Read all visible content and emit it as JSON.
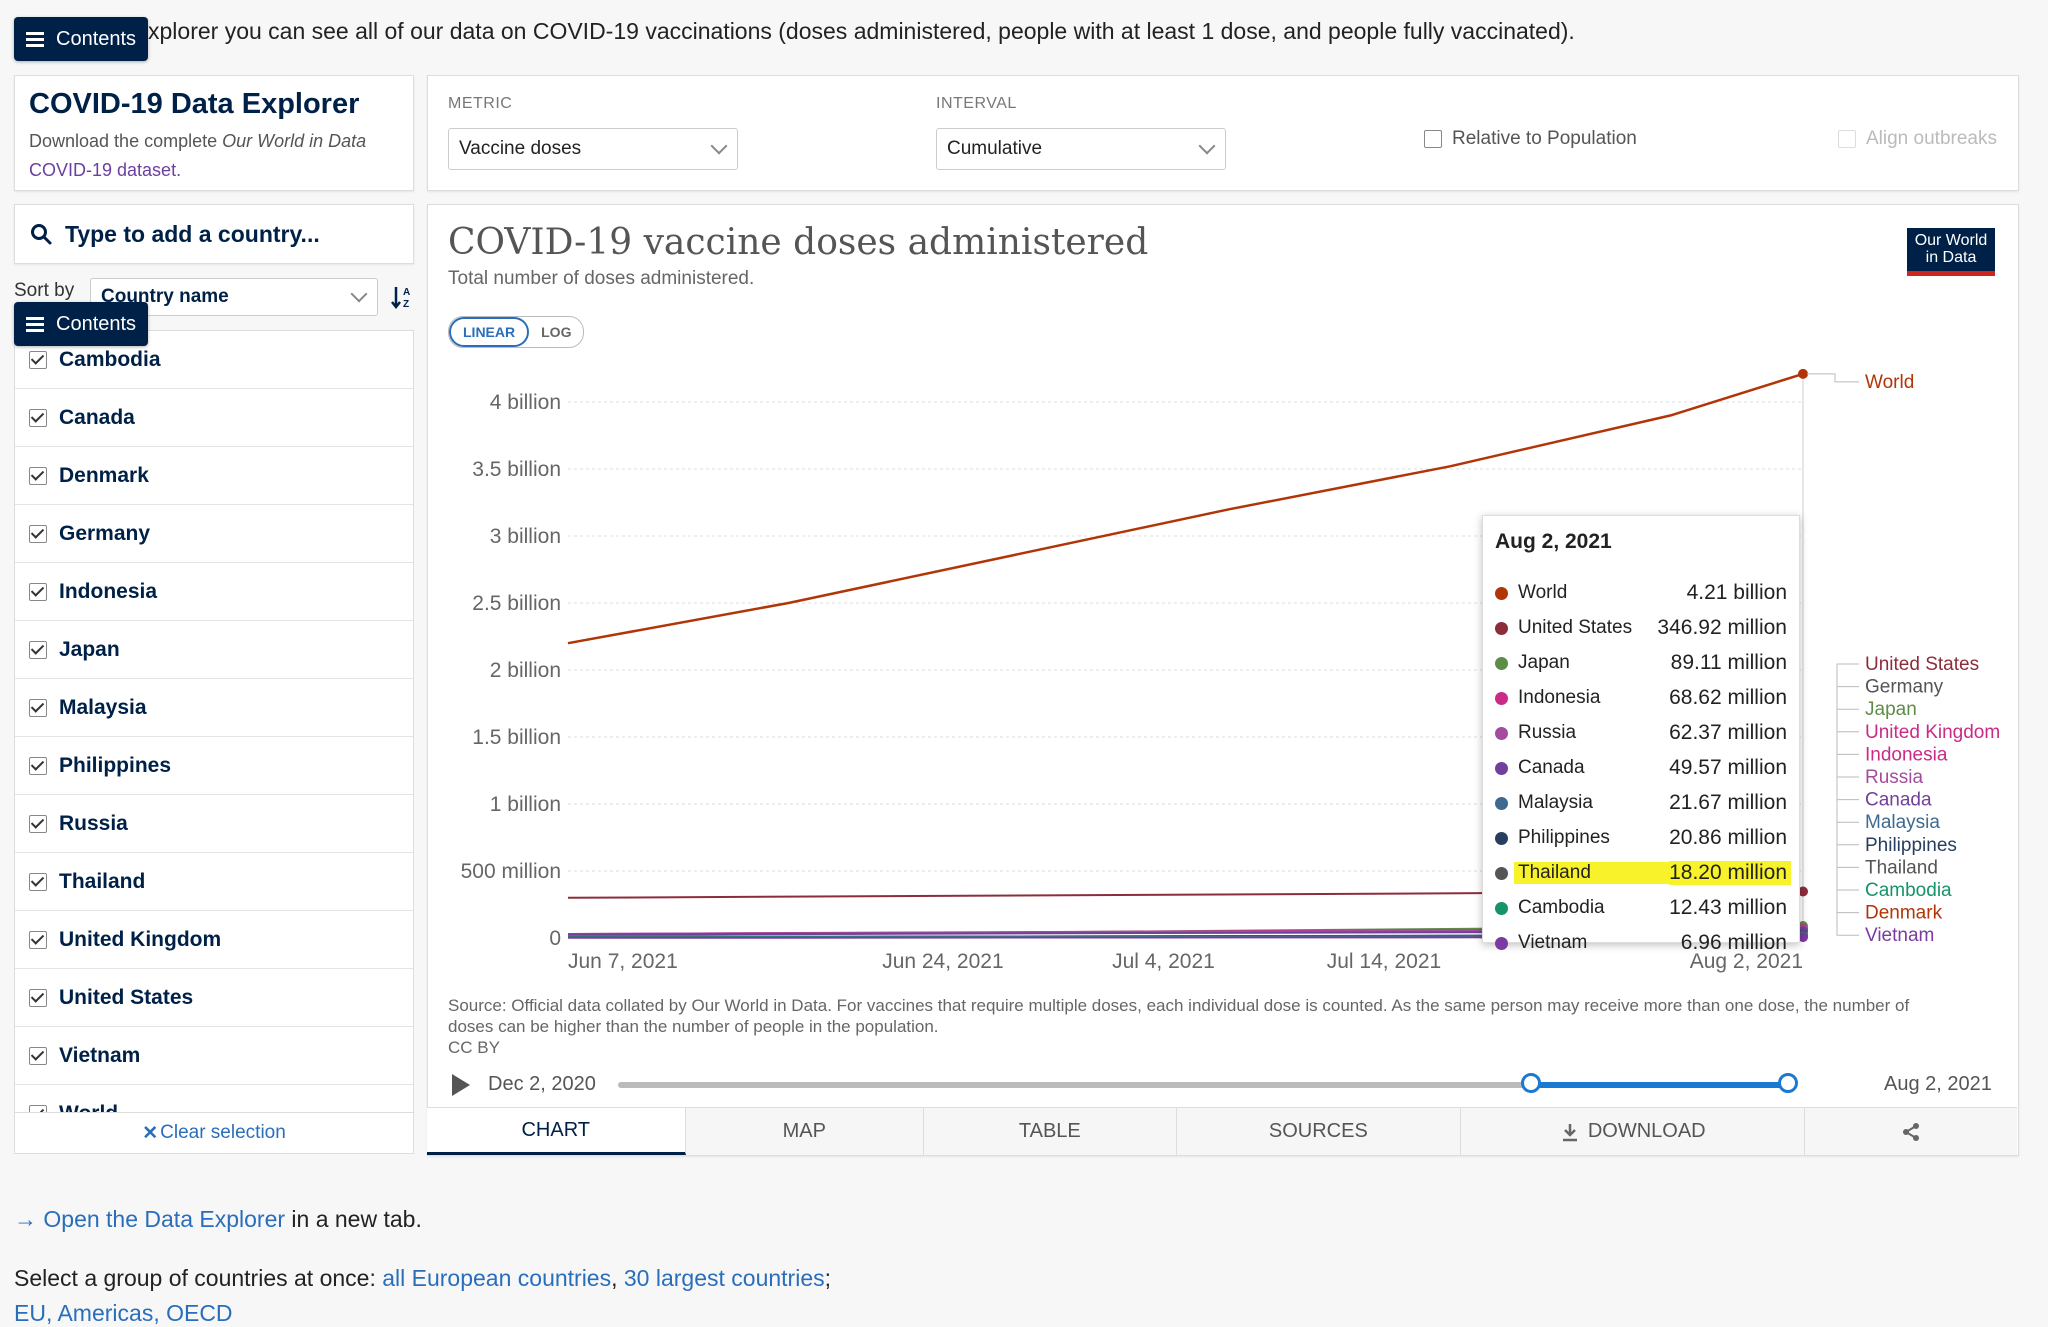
{
  "nav": {
    "contents_label": "Contents"
  },
  "intro_text": "xplorer you can see all of our data on COVID-19 vaccinations (doses administered, people with at least 1 dose, and people fully vaccinated).",
  "explorer": {
    "title": "COVID-19 Data Explorer",
    "sub_prefix": "Download the complete ",
    "sub_italic": "Our World in Data",
    "sub_link": "COVID-19 dataset."
  },
  "search": {
    "placeholder": "Type to add a country..."
  },
  "sort": {
    "label": "Sort by",
    "value": "Country name"
  },
  "countries": [
    {
      "name": "Cambodia",
      "checked": true
    },
    {
      "name": "Canada",
      "checked": true
    },
    {
      "name": "Denmark",
      "checked": true
    },
    {
      "name": "Germany",
      "checked": true
    },
    {
      "name": "Indonesia",
      "checked": true
    },
    {
      "name": "Japan",
      "checked": true
    },
    {
      "name": "Malaysia",
      "checked": true
    },
    {
      "name": "Philippines",
      "checked": true
    },
    {
      "name": "Russia",
      "checked": true
    },
    {
      "name": "Thailand",
      "checked": true
    },
    {
      "name": "United Kingdom",
      "checked": true
    },
    {
      "name": "United States",
      "checked": true
    },
    {
      "name": "Vietnam",
      "checked": true
    },
    {
      "name": "World",
      "checked": true
    }
  ],
  "clear_selection": "Clear selection",
  "controls": {
    "metric_label": "METRIC",
    "metric_value": "Vaccine doses",
    "interval_label": "INTERVAL",
    "interval_value": "Cumulative",
    "relative_label": "Relative to Population",
    "align_label": "Align outbreaks"
  },
  "chart": {
    "title": "COVID-19 vaccine doses administered",
    "subtitle": "Total number of doses administered.",
    "logo_line1": "Our World",
    "logo_line2": "in Data",
    "scale_linear": "LINEAR",
    "scale_log": "LOG",
    "source_text": "Source: Official data collated by Our World in Data. For vaccines that require multiple doses, each individual dose is counted. As the same person may receive more than one dose, the number of doses can be higher than the number of people in the population.",
    "license": "CC BY"
  },
  "chart_data": {
    "type": "line",
    "title": "COVID-19 vaccine doses administered",
    "subtitle": "Total number of doses administered.",
    "x_ticks": [
      "Jun 7, 2021",
      "Jun 24, 2021",
      "Jul 4, 2021",
      "Jul 14, 2021",
      "Aug 2, 2021"
    ],
    "y_ticks": [
      "0",
      "500 million",
      "1 billion",
      "1.5 billion",
      "2 billion",
      "2.5 billion",
      "3 billion",
      "3.5 billion",
      "4 billion"
    ],
    "ylim": [
      0,
      4300000000
    ],
    "x_range": [
      "2021-06-07",
      "2021-08-02"
    ],
    "grid": true,
    "series": [
      {
        "name": "World",
        "color": "#b13507",
        "x": [
          "2021-06-07",
          "2021-06-17",
          "2021-06-27",
          "2021-07-07",
          "2021-07-17",
          "2021-07-27",
          "2021-08-02"
        ],
        "values": [
          2200000000,
          2500000000,
          2850000000,
          3200000000,
          3520000000,
          3900000000,
          4210000000
        ]
      },
      {
        "name": "United States",
        "color": "#8c2d3b",
        "x": [
          "2021-06-07",
          "2021-08-02"
        ],
        "values": [
          300000000,
          346920000
        ]
      },
      {
        "name": "Japan",
        "color": "#5e8d48",
        "x": [
          "2021-06-07",
          "2021-08-02"
        ],
        "values": [
          14000000,
          89110000
        ]
      },
      {
        "name": "Indonesia",
        "color": "#c92b87",
        "x": [
          "2021-06-07",
          "2021-08-02"
        ],
        "values": [
          30000000,
          68620000
        ]
      },
      {
        "name": "Russia",
        "color": "#a44d9c",
        "x": [
          "2021-06-07",
          "2021-08-02"
        ],
        "values": [
          30000000,
          62370000
        ]
      },
      {
        "name": "Canada",
        "color": "#70409b",
        "x": [
          "2021-06-07",
          "2021-08-02"
        ],
        "values": [
          26000000,
          49570000
        ]
      },
      {
        "name": "Malaysia",
        "color": "#3e6a8f",
        "x": [
          "2021-06-07",
          "2021-08-02"
        ],
        "values": [
          5000000,
          21670000
        ]
      },
      {
        "name": "Philippines",
        "color": "#283e5e",
        "x": [
          "2021-06-07",
          "2021-08-02"
        ],
        "values": [
          6000000,
          20860000
        ]
      },
      {
        "name": "Thailand",
        "color": "#555555",
        "x": [
          "2021-06-07",
          "2021-08-02"
        ],
        "values": [
          5000000,
          18200000
        ]
      },
      {
        "name": "Cambodia",
        "color": "#17936a",
        "x": [
          "2021-06-07",
          "2021-08-02"
        ],
        "values": [
          6000000,
          12430000
        ]
      },
      {
        "name": "Vietnam",
        "color": "#7a3aa1",
        "x": [
          "2021-06-07",
          "2021-08-02"
        ],
        "values": [
          1500000,
          6960000
        ]
      }
    ],
    "legend_labels": [
      {
        "name": "World",
        "color": "#b13507"
      },
      {
        "name": "United States",
        "color": "#8c2d3b"
      },
      {
        "name": "Germany",
        "color": "#555555"
      },
      {
        "name": "Japan",
        "color": "#5e8d48"
      },
      {
        "name": "United Kingdom",
        "color": "#c92b87"
      },
      {
        "name": "Indonesia",
        "color": "#c92b87"
      },
      {
        "name": "Russia",
        "color": "#a44d9c"
      },
      {
        "name": "Canada",
        "color": "#70409b"
      },
      {
        "name": "Malaysia",
        "color": "#3e6a8f"
      },
      {
        "name": "Philippines",
        "color": "#283e5e"
      },
      {
        "name": "Thailand",
        "color": "#555555"
      },
      {
        "name": "Cambodia",
        "color": "#17936a"
      },
      {
        "name": "Denmark",
        "color": "#b13507"
      },
      {
        "name": "Vietnam",
        "color": "#7a3aa1"
      }
    ],
    "legend_placement": "right"
  },
  "tooltip": {
    "date": "Aug 2, 2021",
    "rows": [
      {
        "name": "World",
        "value": "4.21 billion",
        "color": "#b13507"
      },
      {
        "name": "United States",
        "value": "346.92 million",
        "color": "#8c2d3b"
      },
      {
        "name": "Japan",
        "value": "89.11 million",
        "color": "#5e8d48"
      },
      {
        "name": "Indonesia",
        "value": "68.62 million",
        "color": "#c92b87"
      },
      {
        "name": "Russia",
        "value": "62.37 million",
        "color": "#a44d9c"
      },
      {
        "name": "Canada",
        "value": "49.57 million",
        "color": "#70409b"
      },
      {
        "name": "Malaysia",
        "value": "21.67 million",
        "color": "#3e6a8f"
      },
      {
        "name": "Philippines",
        "value": "20.86 million",
        "color": "#283e5e"
      },
      {
        "name": "Thailand",
        "value": "18.20 million",
        "color": "#555555",
        "highlight": true
      },
      {
        "name": "Cambodia",
        "value": "12.43 million",
        "color": "#17936a"
      },
      {
        "name": "Vietnam",
        "value": "6.96 million",
        "color": "#7a3aa1"
      }
    ]
  },
  "timeline": {
    "start": "Dec 2, 2020",
    "end": "Aug 2, 2021",
    "selection_start_fraction": 0.78,
    "selection_end_fraction": 1.0
  },
  "tabs": [
    {
      "label": "CHART",
      "active": true
    },
    {
      "label": "MAP",
      "active": false
    },
    {
      "label": "TABLE",
      "active": false
    },
    {
      "label": "SOURCES",
      "active": false
    },
    {
      "label": "DOWNLOAD",
      "active": false
    },
    {
      "label": "",
      "active": false
    }
  ],
  "footer": {
    "open_arrow": "→",
    "open_link": "Open the Data Explorer",
    "open_suffix": " in a new tab.",
    "group_prefix": "Select a group of countries at once: ",
    "group_link1": "all European countries",
    "group_sep": ", ",
    "group_link2": "30 largest countries",
    "group_suffix": ";",
    "next_line": "EU, Americas, OECD"
  }
}
